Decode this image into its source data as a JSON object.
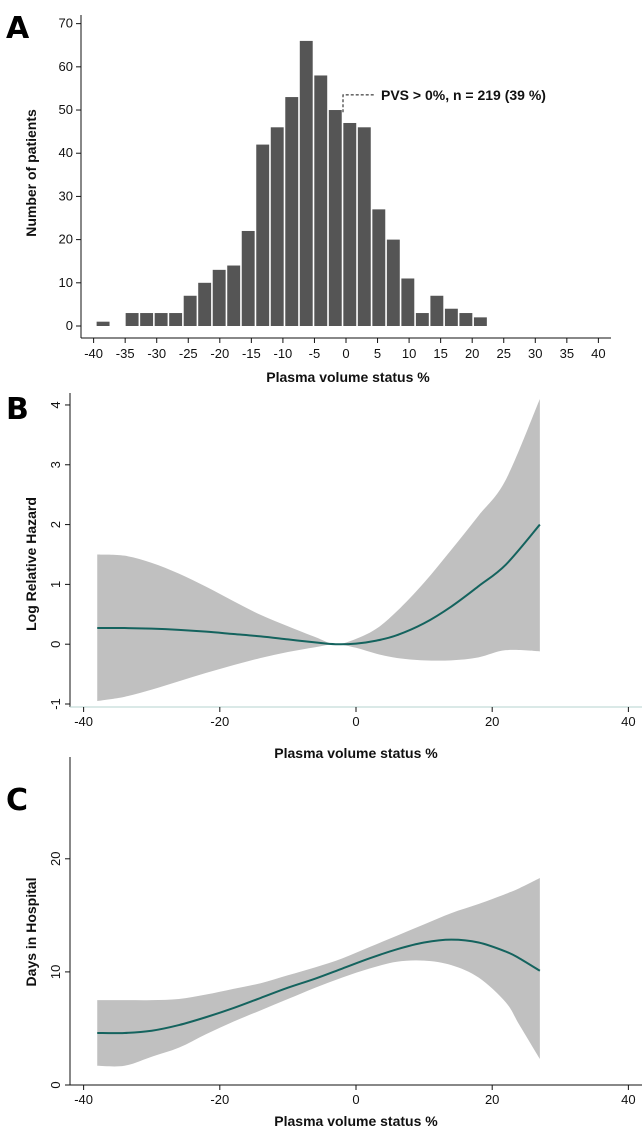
{
  "chart_data": [
    {
      "panel": "A",
      "type": "bar",
      "title": "",
      "xlabel": "Plasma volume status %",
      "ylabel": "Number of patients",
      "xlim": [
        -42,
        42
      ],
      "ylim": [
        0,
        72
      ],
      "xticks": [
        "-40",
        "-35",
        "-30",
        "-25",
        "-20",
        "-15",
        "-10",
        "-5",
        "0",
        "5",
        "10",
        "15",
        "20",
        "25",
        "30",
        "35",
        "40"
      ],
      "yticks": [
        "0",
        "10",
        "20",
        "30",
        "40",
        "50",
        "60",
        "70"
      ],
      "bin_width": 2.3,
      "bars": [
        {
          "x": -38.5,
          "value": 1
        },
        {
          "x": -33.9,
          "value": 3
        },
        {
          "x": -31.6,
          "value": 3
        },
        {
          "x": -29.3,
          "value": 3
        },
        {
          "x": -27.0,
          "value": 3
        },
        {
          "x": -24.7,
          "value": 7
        },
        {
          "x": -22.4,
          "value": 10
        },
        {
          "x": -20.1,
          "value": 13
        },
        {
          "x": -17.8,
          "value": 14
        },
        {
          "x": -15.5,
          "value": 22
        },
        {
          "x": -13.2,
          "value": 42
        },
        {
          "x": -10.9,
          "value": 46
        },
        {
          "x": -8.6,
          "value": 53
        },
        {
          "x": -6.3,
          "value": 66
        },
        {
          "x": -4.0,
          "value": 58
        },
        {
          "x": -1.7,
          "value": 50
        },
        {
          "x": 0.6,
          "value": 47
        },
        {
          "x": 2.9,
          "value": 46
        },
        {
          "x": 5.2,
          "value": 27
        },
        {
          "x": 7.5,
          "value": 20
        },
        {
          "x": 9.8,
          "value": 11
        },
        {
          "x": 12.1,
          "value": 3
        },
        {
          "x": 14.4,
          "value": 7
        },
        {
          "x": 16.7,
          "value": 4
        },
        {
          "x": 19.0,
          "value": 3
        },
        {
          "x": 21.3,
          "value": 2
        }
      ],
      "annotation": {
        "text": "PVS > 0%, n = 219 (39 %)",
        "x": 0,
        "y": 55
      }
    },
    {
      "panel": "B",
      "type": "line",
      "title": "",
      "xlabel": "Plasma volume status %",
      "ylabel": "Log Relative Hazard",
      "xlim": [
        -42,
        42
      ],
      "ylim": [
        -1.05,
        4.2
      ],
      "xticks": [
        -40,
        -20,
        0,
        20,
        40
      ],
      "yticks": [
        -1,
        0,
        1,
        2,
        3,
        4
      ],
      "x": [
        -38,
        -34,
        -30,
        -26,
        -22,
        -18,
        -14,
        -10,
        -6,
        -3,
        0,
        3,
        6,
        10,
        14,
        18,
        22,
        27
      ],
      "series": [
        {
          "values": [
            0.27,
            0.27,
            0.26,
            0.24,
            0.21,
            0.17,
            0.13,
            0.08,
            0.03,
            0.0,
            0.01,
            0.06,
            0.15,
            0.35,
            0.63,
            0.97,
            1.33,
            2.0
          ]
        }
      ],
      "ci_lower": [
        -0.95,
        -0.88,
        -0.76,
        -0.62,
        -0.48,
        -0.35,
        -0.23,
        -0.13,
        -0.05,
        0.0,
        -0.06,
        -0.16,
        -0.23,
        -0.27,
        -0.27,
        -0.22,
        -0.1,
        -0.12
      ],
      "ci_upper": [
        1.5,
        1.48,
        1.36,
        1.18,
        0.96,
        0.72,
        0.49,
        0.3,
        0.12,
        0.0,
        0.09,
        0.26,
        0.55,
        1.03,
        1.58,
        2.15,
        2.75,
        4.1
      ]
    },
    {
      "panel": "C",
      "type": "line",
      "title": "",
      "xlabel": "Plasma volume status %",
      "ylabel": "Days in Hospital",
      "xlim": [
        -42,
        42
      ],
      "ylim": [
        0,
        29
      ],
      "xticks": [
        -40,
        -20,
        0,
        20,
        40
      ],
      "yticks": [
        0,
        10,
        20
      ],
      "x": [
        -38,
        -34,
        -30,
        -26,
        -22,
        -18,
        -14,
        -10,
        -6,
        -2,
        2,
        6,
        10,
        14,
        18,
        22,
        24,
        27
      ],
      "series": [
        {
          "values": [
            4.6,
            4.6,
            4.8,
            5.3,
            6.0,
            6.8,
            7.7,
            8.6,
            9.4,
            10.3,
            11.2,
            12.0,
            12.6,
            12.85,
            12.6,
            11.8,
            11.2,
            10.1
          ]
        }
      ],
      "ci_lower": [
        1.7,
        1.7,
        2.5,
        3.3,
        4.5,
        5.6,
        6.6,
        7.6,
        8.6,
        9.5,
        10.3,
        10.9,
        11.0,
        10.6,
        9.5,
        7.3,
        5.3,
        2.3
      ],
      "ci_upper": [
        7.5,
        7.5,
        7.5,
        7.6,
        8.0,
        8.5,
        9.0,
        9.7,
        10.4,
        11.2,
        12.2,
        13.2,
        14.2,
        15.2,
        16.0,
        16.9,
        17.4,
        18.3
      ]
    }
  ]
}
